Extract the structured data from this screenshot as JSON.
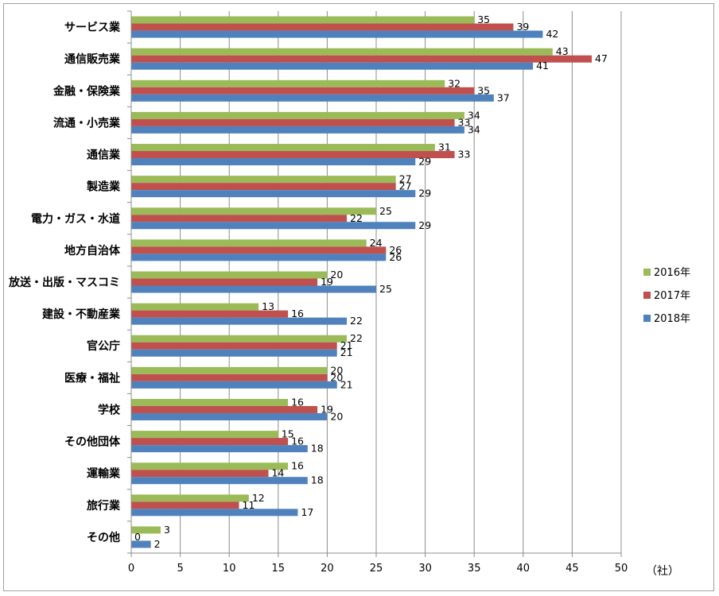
{
  "chart_data": {
    "type": "bar",
    "orientation": "horizontal",
    "categories": [
      "サービス業",
      "通信販売業",
      "金融・保険業",
      "流通・小売業",
      "通信業",
      "製造業",
      "電力・ガス・水道",
      "地方自治体",
      "放送・出版・マスコミ",
      "建設・不動産業",
      "官公庁",
      "医療・福祉",
      "学校",
      "その他団体",
      "運輸業",
      "旅行業",
      "その他"
    ],
    "series": [
      {
        "name": "2016年",
        "color": "#9bbb59",
        "values": [
          35,
          43,
          32,
          34,
          31,
          27,
          25,
          24,
          20,
          13,
          22,
          20,
          16,
          15,
          16,
          12,
          3
        ]
      },
      {
        "name": "2017年",
        "color": "#c0504d",
        "values": [
          39,
          47,
          35,
          33,
          33,
          27,
          22,
          26,
          19,
          16,
          21,
          20,
          19,
          16,
          14,
          11,
          0
        ]
      },
      {
        "name": "2018年",
        "color": "#4f81bd",
        "values": [
          42,
          41,
          37,
          34,
          29,
          29,
          29,
          26,
          25,
          22,
          21,
          21,
          20,
          18,
          18,
          17,
          2
        ]
      }
    ],
    "xlim": [
      0,
      50
    ],
    "xticks": [
      0,
      5,
      10,
      15,
      20,
      25,
      30,
      35,
      40,
      45,
      50
    ],
    "unit_label": "（社）",
    "grid": true,
    "legend_position": "right"
  }
}
